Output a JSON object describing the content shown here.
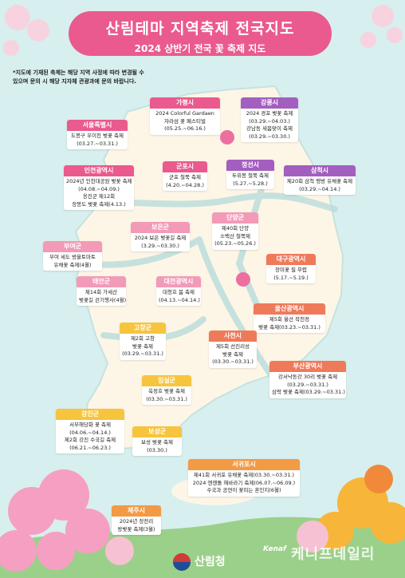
{
  "title": "산림테마 지역축제 전국지도",
  "subtitle": "2024 상반기 전국 꽃 축제 지도",
  "notice": [
    "*지도에 기재된 축제는 해당 지역 사정에 따라 변경될 수",
    "있으며 문의 시 해당 지자체 관광과에 문의 바랍니다."
  ],
  "colors": {
    "pink": "#ea5a8e",
    "purple": "#a35fbf",
    "orange": "#f39a45",
    "salmon": "#ef7a5a",
    "yellow": "#f7c43e",
    "lightpink": "#f39ab8",
    "peach": "#f3a96a"
  },
  "festivals": [
    {
      "id": "seoul",
      "region": "서울특별시",
      "color": "#ea5a8e",
      "lines": [
        "도봉구 우이천 벚꽃 축제",
        "(03.27.~03.31.)"
      ]
    },
    {
      "id": "gapyeong",
      "region": "가평시",
      "color": "#ea5a8e",
      "lines": [
        "2024 Colorful Gardaen",
        "자라섬 꽃 페스티벌",
        "(05.25.~06.16.)"
      ]
    },
    {
      "id": "gangneung",
      "region": "강릉시",
      "color": "#a35fbf",
      "lines": [
        "2024 경포 벚꽃 축제",
        "(03.29.~04.03.)",
        "강남동 새봄맞이 축제",
        "(03.29.~03.30.)"
      ]
    },
    {
      "id": "incheon",
      "region": "인천광역시",
      "color": "#ea5a8e",
      "lines": [
        "2024년 인천대공원 벚꽃 축제",
        "(04.08.~04.09.)",
        "옹진군 제12회",
        "장봉도 벚꽃 축제(4.13.)"
      ]
    },
    {
      "id": "gunpo",
      "region": "군포시",
      "color": "#ea5a8e",
      "lines": [
        "군포 철쭉 축제",
        "(4.20.~04.28.)"
      ]
    },
    {
      "id": "jeongseon",
      "region": "정선시",
      "color": "#a35fbf",
      "lines": [
        "두위봉 철쭉 축제",
        "(5.27.~5.28.)"
      ]
    },
    {
      "id": "samcheok",
      "region": "삼척시",
      "color": "#a35fbf",
      "lines": [
        "제20회 삼척 맹방 유채꽃 축제",
        "(03.29.~04.14.)"
      ]
    },
    {
      "id": "danyang",
      "region": "단양군",
      "color": "#f39ab8",
      "lines": [
        "제40회 단양",
        "소백산 철쭉제",
        "(05.23.~05.26.)"
      ]
    },
    {
      "id": "boeun",
      "region": "보은군",
      "color": "#f39ab8",
      "lines": [
        "2024 보은 벚꽃길 축제",
        "(3.29.~03.30.)"
      ]
    },
    {
      "id": "buyeo",
      "region": "부여군",
      "color": "#f39ab8",
      "lines": [
        "부여 세도 방울토마토",
        "유채꽃 축제(4월)"
      ]
    },
    {
      "id": "daegu",
      "region": "대구광역시",
      "color": "#ef7a5a",
      "lines": [
        "장미꽃 필 무렵",
        "(5.17.~5.19.)"
      ]
    },
    {
      "id": "taean",
      "region": "태안군",
      "color": "#f39ab8",
      "lines": [
        "제14회 가세산",
        "벚꽃길 걷기행사(4월)"
      ]
    },
    {
      "id": "daejeon",
      "region": "대전광역시",
      "color": "#f39ab8",
      "lines": [
        "대청호 봄 축제",
        "(04.13.~04.14.)"
      ]
    },
    {
      "id": "ulsan",
      "region": "울산광역시",
      "color": "#ef7a5a",
      "lines": [
        "제5회 울산 작천정",
        "벚꽃 축제(03.23.~03.31.)"
      ]
    },
    {
      "id": "gochang",
      "region": "고창군",
      "color": "#f7c43e",
      "lines": [
        "제2회 고창",
        "벚꽃 축제",
        "(03.29.~03.31.)"
      ]
    },
    {
      "id": "sacheon",
      "region": "사천시",
      "color": "#ef7a5a",
      "lines": [
        "제5회 선진리성",
        "벚꽃 축제",
        "(03.30.~03.31.)"
      ]
    },
    {
      "id": "busan",
      "region": "부산광역시",
      "color": "#ef7a5a",
      "lines": [
        "강서낙동강 30리 벚꽃 축제",
        "(03.29.~03.31.)",
        "삼락 벚꽃 축제(03.29.~03.31.)"
      ]
    },
    {
      "id": "imsil",
      "region": "임실군",
      "color": "#f7c43e",
      "lines": [
        "옥정호 벚꽃 축제",
        "(03.30.~03.31.)"
      ]
    },
    {
      "id": "gangjin",
      "region": "강진군",
      "color": "#f7c43e",
      "lines": [
        "서부해당화 꽃 축제",
        "(04.06.~04.14.)",
        "제2회 강진 수국길 축제",
        "(06.21.~06.23.)"
      ]
    },
    {
      "id": "boseong",
      "region": "보성군",
      "color": "#f7c43e",
      "lines": [
        "보성 벚꽃 축제",
        "(03.30.)"
      ]
    },
    {
      "id": "seogwipo",
      "region": "서귀포시",
      "color": "#f39a45",
      "lines": [
        "제41회 서귀포 유채꽃 축제(03.30.~03.31.)",
        "2024 엔젠돌 해바라기 축제(06.07.~06.09.)",
        "수국과 공연이 꽃피는 혼인지(6월)"
      ]
    },
    {
      "id": "jeju",
      "region": "제주시",
      "color": "#f39a45",
      "lines": [
        "2024년 장전리",
        "왕벚꽃 축제(3월)"
      ]
    }
  ],
  "footer": {
    "logo_text": "산림청",
    "watermark": "케니프데일리",
    "watermark_brand": "Kenaf"
  }
}
